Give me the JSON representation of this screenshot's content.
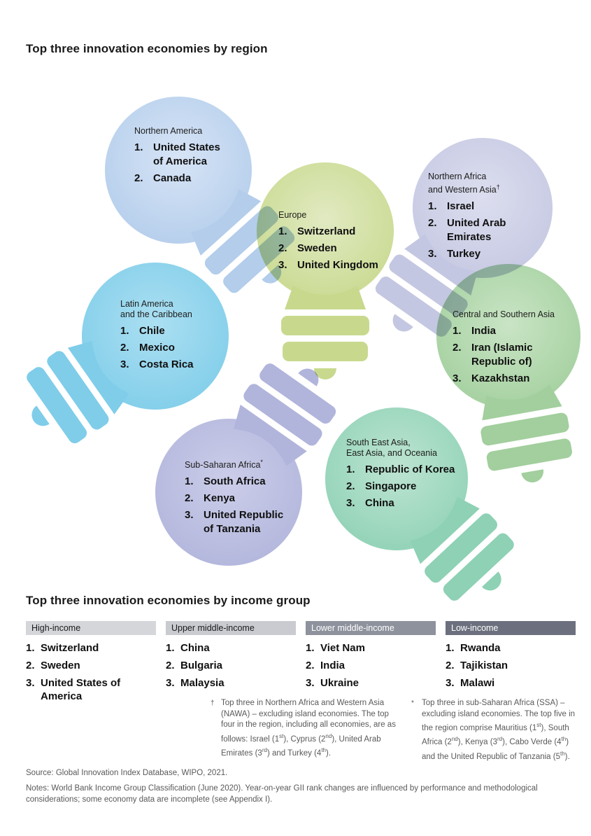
{
  "page": {
    "region_title": "Top three innovation economies by region",
    "income_title": "Top three innovation economies by income group",
    "source": "Source: Global Innovation Index Database, WIPO, 2021.",
    "notes": "Notes: World Bank Income Group Classification (June 2020). Year-on-year GII rank changes are influenced by performance and methodological considerations; some economy data are incomplete (see Appendix I)."
  },
  "regions": [
    {
      "id": "northern-america",
      "label_lines": [
        "Northern America"
      ],
      "label_sup": "",
      "items": [
        "United States of America",
        "Canada"
      ],
      "color": "#b3cdeb",
      "color_light": "#d7e4f6"
    },
    {
      "id": "europe",
      "label_lines": [
        "Europe"
      ],
      "label_sup": "",
      "items": [
        "Switzerland",
        "Sweden",
        "United Kingdom"
      ],
      "color": "#c8d98e",
      "color_light": "#e1eac2"
    },
    {
      "id": "northern-africa-western-asia",
      "label_lines": [
        "Northern Africa",
        "and Western Asia"
      ],
      "label_sup": "†",
      "items": [
        "Israel",
        "United Arab Emirates",
        "Turkey"
      ],
      "color": "#c4c7e1",
      "color_light": "#dcdeef"
    },
    {
      "id": "latin-america-caribbean",
      "label_lines": [
        "Latin America",
        "and the Caribbean"
      ],
      "label_sup": "",
      "items": [
        "Chile",
        "Mexico",
        "Costa Rica"
      ],
      "color": "#7fcde9",
      "color_light": "#abdff2"
    },
    {
      "id": "central-southern-asia",
      "label_lines": [
        "Central and Southern Asia"
      ],
      "label_sup": "",
      "items": [
        "India",
        "Iran (Islamic Republic of)",
        "Kazakhstan"
      ],
      "color": "#a2cf9d",
      "color_light": "#c9e4c5"
    },
    {
      "id": "sub-saharan-africa",
      "label_lines": [
        "Sub-Saharan Africa"
      ],
      "label_sup": "*",
      "items": [
        "South Africa",
        "Kenya",
        "United Republic of Tanzania"
      ],
      "color": "#b1b5db",
      "color_light": "#cbcde9"
    },
    {
      "id": "seao",
      "label_lines": [
        "South East Asia,",
        "East Asia, and Oceania"
      ],
      "label_sup": "",
      "items": [
        "Republic of Korea",
        "Singapore",
        "China"
      ],
      "color": "#8ed1b5",
      "color_light": "#bde4d2"
    }
  ],
  "income_groups": [
    {
      "label": "High-income",
      "header_bg": "#d4d6d9",
      "header_fg": "#1a1a1a",
      "items": [
        "Switzerland",
        "Sweden",
        "United States of America"
      ]
    },
    {
      "label": "Upper middle-income",
      "header_bg": "#c9cbd0",
      "header_fg": "#1a1a1a",
      "items": [
        "China",
        "Bulgaria",
        "Malaysia"
      ]
    },
    {
      "label": "Lower middle-income",
      "header_bg": "#8e929d",
      "header_fg": "#ffffff",
      "items": [
        "Viet Nam",
        "India",
        "Ukraine"
      ]
    },
    {
      "label": "Low-income",
      "header_bg": "#6c707e",
      "header_fg": "#ffffff",
      "items": [
        "Rwanda",
        "Tajikistan",
        "Malawi"
      ]
    }
  ],
  "footnotes": [
    {
      "id": "dagger",
      "marker": "†",
      "text": "Top three in Northern Africa and Western Asia (NAWA) – excluding island economies. The top four in the region, including all economies, are as follows: Israel (1st), Cyprus (2nd), United Arab Emirates (3rd) and Turkey (4th)."
    },
    {
      "id": "asterisk",
      "marker": "*",
      "text": "Top three in sub-Saharan Africa (SSA) – excluding island economies. The top five in the region comprise Mauritius (1st), South Africa (2nd), Kenya (3rd), Cabo Verde (4th) and the United Republic of Tanzania (5th)."
    }
  ]
}
